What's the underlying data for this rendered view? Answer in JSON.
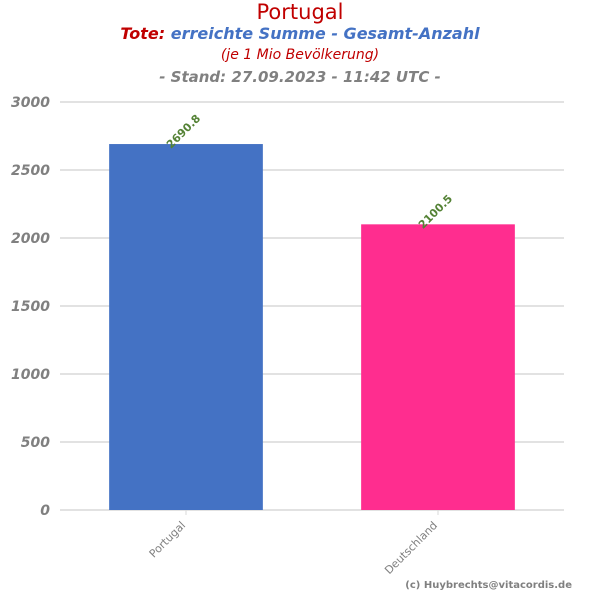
{
  "header": {
    "title": "Portugal",
    "subtitle_prefix": "Tote:",
    "subtitle_main": "erreichte Summe - Gesamt-Anzahl",
    "subtitle_line2": "(je 1 Mio Bevölkerung)",
    "subtitle_line3": "- Stand: 27.09.2023 - 11:42 UTC -"
  },
  "credit": "(c) Huybrechts@vitacordis.de",
  "colors": {
    "title": "#c00000",
    "series_blue": "#4472c4",
    "series_pink": "#ff2d8f",
    "data_label": "#548235",
    "grid": "#d9d9d9",
    "tick": "#808080"
  },
  "chart_data": {
    "type": "bar",
    "title": "Portugal",
    "categories": [
      "Portugal",
      "Deutschland"
    ],
    "values": [
      2690.8,
      2100.5
    ],
    "value_labels": [
      "2690.8",
      "2100.5"
    ],
    "bar_colors": [
      "#4472c4",
      "#ff2d8f"
    ],
    "ylim": [
      0,
      3000
    ],
    "yticks": [
      0,
      500,
      1000,
      1500,
      2000,
      2500,
      3000
    ],
    "ytick_labels": [
      "0",
      "500",
      "1000",
      "1500",
      "2000",
      "2500",
      "3000"
    ],
    "xlabel": "",
    "ylabel": "",
    "grid": true,
    "legend": "none"
  }
}
